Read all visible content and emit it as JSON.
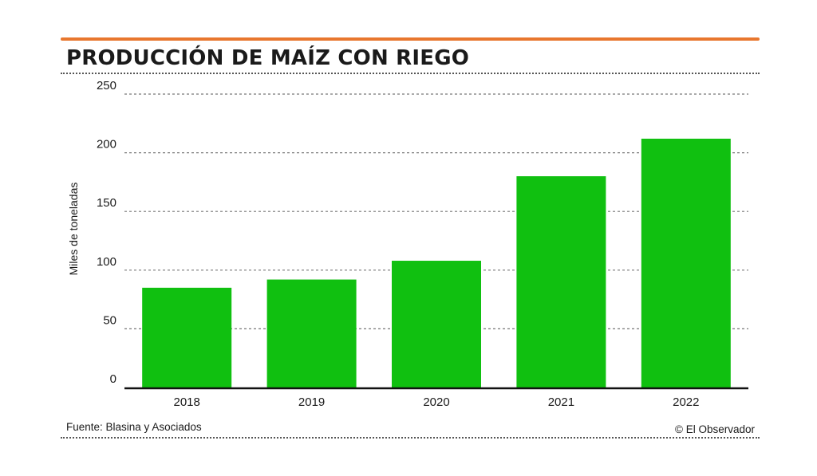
{
  "header": {
    "title": "PRODUCCIÓN DE MAÍZ CON RIEGO"
  },
  "footer": {
    "source": "Fuente: Blasina y Asociados",
    "credit": "© El Observador"
  },
  "colors": {
    "accent_rule": "#e8772e",
    "bar": "#10c010",
    "grid": "#777777",
    "axis": "#111111"
  },
  "chart_data": {
    "type": "bar",
    "title": "PRODUCCIÓN DE MAÍZ CON RIEGO",
    "xlabel": "",
    "ylabel": "Miles de toneladas",
    "categories": [
      "2018",
      "2019",
      "2020",
      "2021",
      "2022"
    ],
    "values": [
      85,
      92,
      108,
      180,
      212
    ],
    "ylim": [
      0,
      250
    ],
    "yticks": [
      0,
      50,
      100,
      150,
      200,
      250
    ],
    "grid": true,
    "grid_style": "dotted",
    "legend": "none"
  }
}
